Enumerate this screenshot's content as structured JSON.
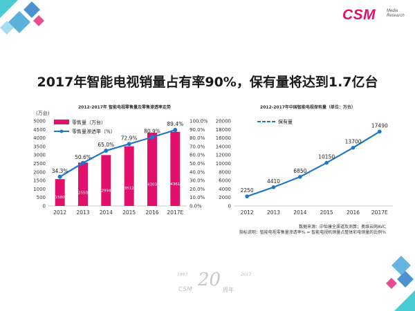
{
  "headline": "2017年智能电视销量占有率90%，保有量将达到1.7亿台",
  "logo": {
    "text": "CSM",
    "sub_line1": "Media",
    "sub_line2": "Research"
  },
  "colors": {
    "bar": "#e0106c",
    "line": "#1f77c6",
    "accent_blue": "#4aa8d8",
    "accent_teal": "#2ac2c9",
    "accent_pink": "#e0106c"
  },
  "notes": {
    "source": "数据来源：中怡康全渠道及测算；奥维云网AVC",
    "definition": "指标说明：智能电视零售量渗透率% = 智能电视机销量占整体彩电销量的比例%"
  },
  "watermark": {
    "year_start": "1997",
    "year_end": "2017",
    "number": "20",
    "brand": "CSM",
    "zh": "周年"
  },
  "chart_data": [
    {
      "type": "bar",
      "title": "2012-2017年 智能电视零售量及零售渗透率走势",
      "y_unit": "(万台)",
      "categories": [
        "2012",
        "2013",
        "2014",
        "2015",
        "2016",
        "2017E"
      ],
      "series": [
        {
          "name": "零售量（万台）",
          "type": "bar",
          "axis": "left",
          "values": [
            1580,
            2550,
            2994,
            3512,
            4303,
            4361
          ],
          "labels": [
            "1580",
            "2550",
            "2994",
            "3512",
            "4303",
            "4361"
          ]
        },
        {
          "name": "零售量渗透率（%）",
          "type": "line",
          "axis": "right",
          "values": [
            34.3,
            50.6,
            65.0,
            72.9,
            80.9,
            89.4
          ],
          "labels": [
            "34.3%",
            "50.6%",
            "65.0%",
            "72.9%",
            "80.9%",
            "89.4%"
          ]
        }
      ],
      "ylim": [
        0,
        5000
      ],
      "y_ticks": [
        "0",
        "500",
        "1000",
        "1500",
        "2000",
        "2500",
        "3000",
        "3500",
        "4000",
        "4500",
        "5000"
      ],
      "y2lim": [
        0,
        100
      ],
      "y2_ticks": [
        "0.0%",
        "10.0%",
        "20.0%",
        "30.0%",
        "40.0%",
        "50.0%",
        "60.0%",
        "70.0%",
        "80.0%",
        "90.0%",
        "100.0%"
      ],
      "grid": false,
      "legend": "top-left"
    },
    {
      "type": "line",
      "title": "2012-2017年中国智能电视保有量（单位：万台）",
      "categories": [
        "2012",
        "2013",
        "2014",
        "2015",
        "2016",
        "2017E"
      ],
      "series": [
        {
          "name": "保有量",
          "values": [
            2250,
            4410,
            6850,
            10150,
            13700,
            17490
          ],
          "labels": [
            "2250",
            "4410",
            "6850",
            "10150",
            "13700",
            "17490"
          ]
        }
      ],
      "ylim": [
        0,
        20000
      ],
      "y_ticks": [
        "0",
        "2000",
        "4000",
        "6000",
        "8000",
        "10000",
        "12000",
        "14000",
        "16000",
        "18000",
        "20000"
      ],
      "grid": false,
      "legend": "top-left"
    }
  ]
}
